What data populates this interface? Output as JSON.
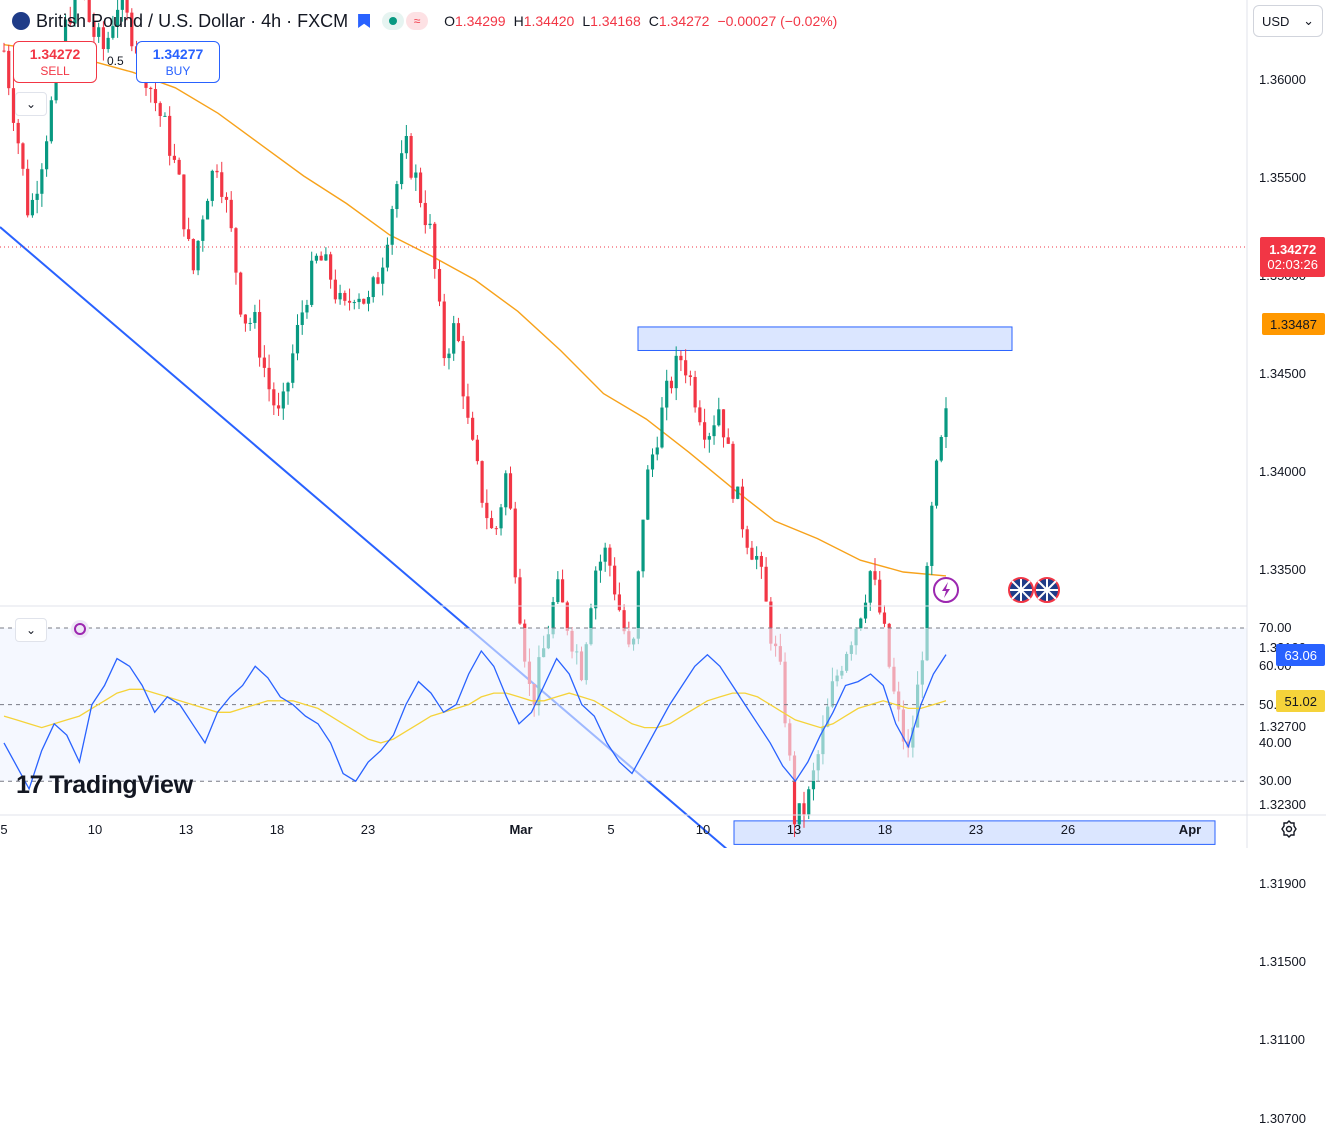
{
  "header": {
    "symbol": "British Pound / U.S. Dollar · 4h · FXCM",
    "o_label": "O",
    "o_value": "1.34299",
    "h_label": "H",
    "h_value": "1.34420",
    "l_label": "L",
    "l_value": "1.34168",
    "c_label": "C",
    "c_value": "1.34272",
    "change": "−0.00027 (−0.02%)"
  },
  "trade": {
    "sell_price": "1.34272",
    "sell_label": "SELL",
    "buy_price": "1.34277",
    "buy_label": "BUY",
    "spread": "0.5"
  },
  "currency": "USD",
  "logo": {
    "mark": "17",
    "name": "TradingView"
  },
  "colors": {
    "up": "#089981",
    "down": "#f23645",
    "ma": "#f7a21b",
    "rsi": "#2962ff",
    "rsi_ma": "#f5d33a",
    "zone": "#2962ff",
    "trend": "#2962ff"
  },
  "price_tags": {
    "last_price": "1.34272",
    "countdown": "02:03:26",
    "ma_value": "1.33487",
    "rsi_value": "63.06",
    "rsi_ma_value": "51.02"
  },
  "chart_data": [
    {
      "type": "candlestick",
      "y_ticks": [
        "1.36000",
        "1.35500",
        "1.35000",
        "1.34500",
        "1.34000",
        "1.33500",
        "1.33100",
        "1.32700",
        "1.32300",
        "1.31900",
        "1.31500",
        "1.31100",
        "1.30700"
      ],
      "x_ticks": [
        "5",
        "10",
        "13",
        "18",
        "23",
        "Mar",
        "5",
        "10",
        "13",
        "18",
        "23",
        "26",
        "Apr"
      ],
      "close_path": [
        1.3615,
        1.3575,
        1.353,
        1.356,
        1.3595,
        1.363,
        1.365,
        1.3625,
        1.3615,
        1.364,
        1.3628,
        1.361,
        1.359,
        1.3572,
        1.3545,
        1.35,
        1.354,
        1.356,
        1.3525,
        1.348,
        1.3475,
        1.3445,
        1.3425,
        1.346,
        1.349,
        1.351,
        1.35,
        1.348,
        1.3495,
        1.3485,
        1.3505,
        1.354,
        1.3565,
        1.3545,
        1.352,
        1.346,
        1.3475,
        1.342,
        1.339,
        1.3365,
        1.34,
        1.3335,
        1.328,
        1.331,
        1.334,
        1.332,
        1.33,
        1.335,
        1.336,
        1.333,
        1.33,
        1.339,
        1.342,
        1.3445,
        1.346,
        1.344,
        1.342,
        1.3435,
        1.3395,
        1.337,
        1.3355,
        1.332,
        1.329,
        1.322,
        1.3232,
        1.326,
        1.329,
        1.331,
        1.3325,
        1.335,
        1.332,
        1.328,
        1.3255,
        1.33,
        1.339,
        1.3427
      ],
      "moving_average_path": [
        1.3618,
        1.3615,
        1.361,
        1.3604,
        1.3596,
        1.3583,
        1.3567,
        1.3551,
        1.3537,
        1.3521,
        1.351,
        1.3498,
        1.3482,
        1.3462,
        1.344,
        1.3427,
        1.341,
        1.3392,
        1.3375,
        1.3366,
        1.3355,
        1.3349,
        1.3347
      ],
      "resistance_zone": [
        1.3462,
        1.3474
      ],
      "support_zone": [
        1.321,
        1.3222
      ],
      "trendline": {
        "start": 1.3525,
        "end": 1.3084
      }
    },
    {
      "type": "line",
      "title": "RSI",
      "y_ticks": [
        "70.00",
        "60.00",
        "50.00",
        "40.00",
        "30.00"
      ],
      "levels": [
        70,
        50,
        30
      ],
      "rsi": [
        40,
        34,
        28,
        38,
        45,
        42,
        35,
        50,
        55,
        62,
        60,
        55,
        48,
        52,
        50,
        45,
        40,
        48,
        52,
        55,
        60,
        57,
        52,
        50,
        47,
        45,
        40,
        32,
        30,
        35,
        38,
        42,
        50,
        56,
        53,
        48,
        50,
        58,
        64,
        60,
        52,
        45,
        48,
        55,
        62,
        58,
        50,
        47,
        40,
        35,
        32,
        38,
        44,
        50,
        55,
        60,
        63,
        60,
        55,
        50,
        45,
        40,
        34,
        30,
        35,
        42,
        48,
        55,
        56,
        58,
        55,
        45,
        39,
        50,
        58,
        63.06
      ],
      "rsi_ma": [
        47,
        46,
        45,
        44,
        45,
        46,
        47,
        49,
        51,
        53,
        54,
        54,
        53,
        52,
        51,
        50,
        49,
        48,
        48,
        49,
        50,
        51,
        51,
        51,
        50,
        49,
        47,
        45,
        43,
        41,
        40,
        41,
        43,
        45,
        47,
        48,
        49,
        50,
        52,
        53,
        53,
        52,
        51,
        51,
        52,
        53,
        52,
        51,
        49,
        47,
        45,
        44,
        44,
        45,
        47,
        49,
        51,
        52,
        53,
        53,
        52,
        50,
        48,
        46,
        45,
        44,
        45,
        47,
        49,
        50,
        51,
        50,
        49,
        49,
        50,
        51.02
      ]
    }
  ],
  "toolbar": {
    "collapse_label": "⌄",
    "currency_chevron": "⌄"
  }
}
